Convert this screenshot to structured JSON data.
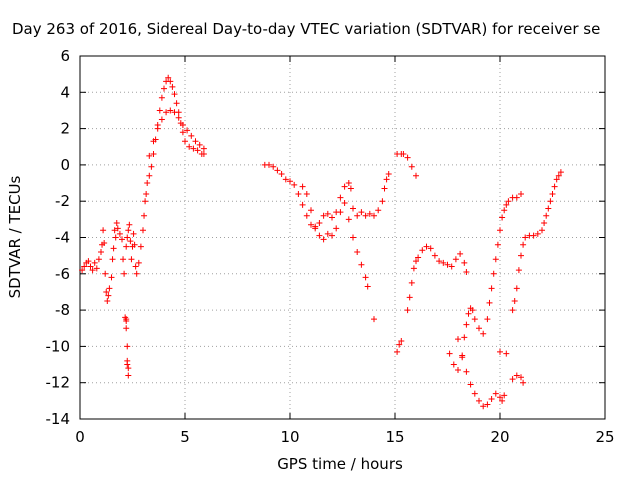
{
  "chart_data": {
    "type": "scatter",
    "title": "Day 263 of 2016, Sidereal Day-to-day VTEC variation (SDTVAR) for receiver se",
    "xlabel": "GPS time / hours",
    "ylabel": "SDTVAR / TECUs",
    "xlim": [
      0,
      25
    ],
    "ylim": [
      -14,
      6
    ],
    "x_ticks": [
      0,
      5,
      10,
      15,
      20,
      25
    ],
    "y_ticks": [
      -14,
      -12,
      -10,
      -8,
      -6,
      -4,
      -2,
      0,
      2,
      4,
      6
    ],
    "grid": true,
    "legend": "none",
    "marker": "+",
    "color": "#ff0000",
    "series": [
      {
        "values": [
          [
            0.1,
            -5.8
          ],
          [
            0.2,
            -5.6
          ],
          [
            0.3,
            -5.4
          ],
          [
            0.4,
            -5.3
          ],
          [
            0.5,
            -5.6
          ],
          [
            0.6,
            -5.8
          ],
          [
            0.7,
            -5.4
          ],
          [
            0.8,
            -5.7
          ],
          [
            0.9,
            -5.2
          ],
          [
            1.0,
            -4.8
          ],
          [
            1.05,
            -4.4
          ],
          [
            1.1,
            -3.6
          ],
          [
            1.15,
            -4.3
          ],
          [
            1.2,
            -6.0
          ],
          [
            1.25,
            -7.0
          ],
          [
            1.3,
            -7.5
          ],
          [
            1.35,
            -7.2
          ],
          [
            1.4,
            -6.8
          ],
          [
            1.5,
            -6.2
          ],
          [
            1.55,
            -5.2
          ],
          [
            1.6,
            -4.6
          ],
          [
            1.65,
            -3.6
          ],
          [
            1.7,
            -4.0
          ],
          [
            1.75,
            -3.2
          ],
          [
            1.8,
            -3.5
          ],
          [
            1.9,
            -3.8
          ],
          [
            2.0,
            -4.1
          ],
          [
            2.05,
            -5.2
          ],
          [
            2.1,
            -6.0
          ],
          [
            2.2,
            -4.5
          ],
          [
            2.25,
            -4.0
          ],
          [
            2.3,
            -3.6
          ],
          [
            2.35,
            -3.3
          ],
          [
            2.4,
            -4.2
          ],
          [
            2.45,
            -5.2
          ],
          [
            2.5,
            -4.5
          ],
          [
            2.55,
            -3.8
          ],
          [
            2.6,
            -4.4
          ],
          [
            2.65,
            -5.6
          ],
          [
            2.7,
            -6.0
          ],
          [
            2.8,
            -5.4
          ],
          [
            2.9,
            -4.5
          ],
          [
            3.0,
            -3.6
          ],
          [
            3.05,
            -2.8
          ],
          [
            3.1,
            -2.0
          ],
          [
            3.15,
            -1.6
          ],
          [
            3.2,
            -1.0
          ],
          [
            3.3,
            -0.6
          ],
          [
            3.4,
            -0.1
          ],
          [
            3.5,
            0.6
          ],
          [
            3.6,
            1.4
          ],
          [
            3.7,
            2.2
          ],
          [
            3.8,
            3.0
          ],
          [
            3.9,
            3.7
          ],
          [
            4.0,
            4.2
          ],
          [
            4.1,
            4.6
          ],
          [
            4.2,
            4.8
          ],
          [
            4.3,
            4.6
          ],
          [
            4.4,
            4.3
          ],
          [
            4.5,
            3.9
          ],
          [
            4.6,
            3.4
          ],
          [
            4.7,
            2.9
          ],
          [
            4.8,
            2.3
          ],
          [
            4.9,
            1.8
          ],
          [
            5.0,
            1.3
          ],
          [
            5.2,
            1.0
          ],
          [
            5.4,
            0.9
          ],
          [
            5.6,
            0.8
          ],
          [
            5.8,
            0.6
          ],
          [
            5.9,
            0.6
          ]
        ]
      },
      {
        "values": [
          [
            3.3,
            0.5
          ],
          [
            3.5,
            1.3
          ],
          [
            3.7,
            2.0
          ],
          [
            3.9,
            2.5
          ],
          [
            4.1,
            2.9
          ],
          [
            4.3,
            3.0
          ],
          [
            4.5,
            2.9
          ],
          [
            4.7,
            2.6
          ],
          [
            4.9,
            2.2
          ],
          [
            5.1,
            1.9
          ],
          [
            5.3,
            1.6
          ],
          [
            5.5,
            1.3
          ],
          [
            5.7,
            1.1
          ],
          [
            5.9,
            0.9
          ]
        ]
      },
      {
        "values": [
          [
            8.8,
            0.0
          ],
          [
            9.0,
            0.0
          ],
          [
            9.2,
            -0.1
          ],
          [
            9.4,
            -0.3
          ],
          [
            9.6,
            -0.5
          ],
          [
            9.8,
            -0.8
          ],
          [
            10.0,
            -0.9
          ],
          [
            10.2,
            -1.1
          ],
          [
            10.4,
            -1.6
          ],
          [
            10.6,
            -2.2
          ],
          [
            10.8,
            -2.8
          ],
          [
            11.0,
            -3.3
          ],
          [
            11.2,
            -3.5
          ],
          [
            11.4,
            -3.2
          ],
          [
            11.6,
            -2.8
          ],
          [
            11.8,
            -2.7
          ],
          [
            12.0,
            -2.9
          ],
          [
            12.2,
            -2.6
          ],
          [
            12.4,
            -1.8
          ],
          [
            12.6,
            -1.2
          ],
          [
            12.8,
            -1.0
          ],
          [
            12.9,
            -1.3
          ],
          [
            13.0,
            -2.4
          ],
          [
            13.2,
            -2.8
          ],
          [
            13.4,
            -2.6
          ],
          [
            13.6,
            -2.8
          ],
          [
            13.8,
            -2.7
          ],
          [
            14.0,
            -2.8
          ],
          [
            14.2,
            -2.5
          ],
          [
            14.4,
            -2.0
          ],
          [
            14.5,
            -1.3
          ],
          [
            14.6,
            -0.8
          ],
          [
            14.7,
            -0.5
          ]
        ]
      },
      {
        "values": [
          [
            10.6,
            -1.2
          ],
          [
            10.8,
            -1.6
          ],
          [
            11.0,
            -2.5
          ],
          [
            11.2,
            -3.4
          ],
          [
            11.4,
            -3.9
          ],
          [
            11.6,
            -4.1
          ],
          [
            11.8,
            -3.8
          ],
          [
            12.0,
            -3.9
          ],
          [
            12.2,
            -3.5
          ],
          [
            12.4,
            -2.6
          ],
          [
            12.6,
            -2.1
          ],
          [
            12.8,
            -3.0
          ],
          [
            13.0,
            -4.0
          ],
          [
            13.2,
            -4.8
          ],
          [
            13.4,
            -5.5
          ],
          [
            13.6,
            -6.2
          ],
          [
            13.7,
            -6.7
          ],
          [
            14.0,
            -8.5
          ]
        ]
      },
      {
        "values": [
          [
            15.1,
            -10.3
          ],
          [
            15.2,
            -9.9
          ],
          [
            15.3,
            -9.7
          ],
          [
            15.1,
            0.6
          ],
          [
            15.3,
            0.6
          ],
          [
            15.4,
            0.6
          ],
          [
            15.6,
            0.4
          ],
          [
            15.8,
            -0.1
          ],
          [
            16.0,
            -0.6
          ],
          [
            15.6,
            -8.0
          ],
          [
            15.7,
            -7.3
          ],
          [
            15.8,
            -6.5
          ],
          [
            15.9,
            -5.7
          ],
          [
            16.0,
            -5.3
          ],
          [
            16.1,
            -5.1
          ],
          [
            16.3,
            -4.7
          ],
          [
            16.5,
            -4.5
          ],
          [
            16.7,
            -4.6
          ],
          [
            16.9,
            -5.0
          ],
          [
            17.1,
            -5.3
          ],
          [
            17.3,
            -5.4
          ],
          [
            17.5,
            -5.5
          ],
          [
            17.7,
            -5.6
          ],
          [
            17.9,
            -5.2
          ],
          [
            18.1,
            -4.9
          ],
          [
            18.3,
            -5.4
          ],
          [
            18.4,
            -5.9
          ],
          [
            17.6,
            -10.4
          ],
          [
            17.8,
            -11.0
          ],
          [
            18.0,
            -11.3
          ],
          [
            18.2,
            -10.5
          ],
          [
            18.3,
            -9.5
          ],
          [
            18.4,
            -8.8
          ],
          [
            18.5,
            -8.2
          ],
          [
            18.6,
            -7.9
          ],
          [
            18.7,
            -8.0
          ],
          [
            18.8,
            -8.5
          ],
          [
            19.0,
            -9.0
          ],
          [
            19.2,
            -9.3
          ],
          [
            19.4,
            -8.5
          ],
          [
            19.5,
            -7.6
          ],
          [
            19.6,
            -6.8
          ],
          [
            19.7,
            -6.0
          ],
          [
            19.8,
            -5.2
          ],
          [
            19.9,
            -4.4
          ],
          [
            20.0,
            -3.6
          ],
          [
            20.1,
            -2.9
          ],
          [
            20.2,
            -2.5
          ],
          [
            20.3,
            -2.2
          ],
          [
            20.4,
            -2.0
          ],
          [
            20.6,
            -1.8
          ],
          [
            20.8,
            -1.8
          ],
          [
            21.0,
            -1.6
          ]
        ]
      },
      {
        "values": [
          [
            18.0,
            -9.6
          ],
          [
            18.2,
            -10.6
          ],
          [
            18.4,
            -11.4
          ],
          [
            18.6,
            -12.1
          ],
          [
            18.8,
            -12.6
          ],
          [
            19.0,
            -13.0
          ],
          [
            19.2,
            -13.3
          ],
          [
            19.4,
            -13.2
          ],
          [
            19.6,
            -12.9
          ],
          [
            19.8,
            -12.6
          ],
          [
            20.0,
            -12.8
          ],
          [
            20.1,
            -13.0
          ],
          [
            20.2,
            -12.7
          ],
          [
            20.0,
            -10.3
          ],
          [
            20.3,
            -10.4
          ],
          [
            20.6,
            -11.8
          ],
          [
            20.8,
            -11.6
          ],
          [
            21.0,
            -11.7
          ],
          [
            21.1,
            -12.0
          ],
          [
            20.6,
            -8.0
          ],
          [
            20.7,
            -7.5
          ],
          [
            20.8,
            -6.8
          ],
          [
            20.9,
            -5.8
          ],
          [
            21.0,
            -5.0
          ],
          [
            21.1,
            -4.4
          ],
          [
            21.2,
            -4.0
          ],
          [
            21.4,
            -3.9
          ],
          [
            21.6,
            -3.9
          ],
          [
            21.8,
            -3.8
          ],
          [
            22.0,
            -3.6
          ],
          [
            22.1,
            -3.2
          ],
          [
            22.2,
            -2.8
          ],
          [
            22.3,
            -2.4
          ],
          [
            22.4,
            -2.0
          ],
          [
            22.5,
            -1.6
          ],
          [
            22.6,
            -1.2
          ],
          [
            22.7,
            -0.8
          ],
          [
            22.8,
            -0.6
          ],
          [
            22.9,
            -0.4
          ]
        ]
      },
      {
        "values": [
          [
            2.15,
            -8.4
          ],
          [
            2.2,
            -8.6
          ],
          [
            2.2,
            -9.0
          ],
          [
            2.25,
            -10.0
          ],
          [
            2.25,
            -10.8
          ],
          [
            2.3,
            -11.2
          ],
          [
            2.3,
            -11.6
          ],
          [
            2.25,
            -11.0
          ],
          [
            2.2,
            -8.5
          ]
        ]
      }
    ]
  }
}
